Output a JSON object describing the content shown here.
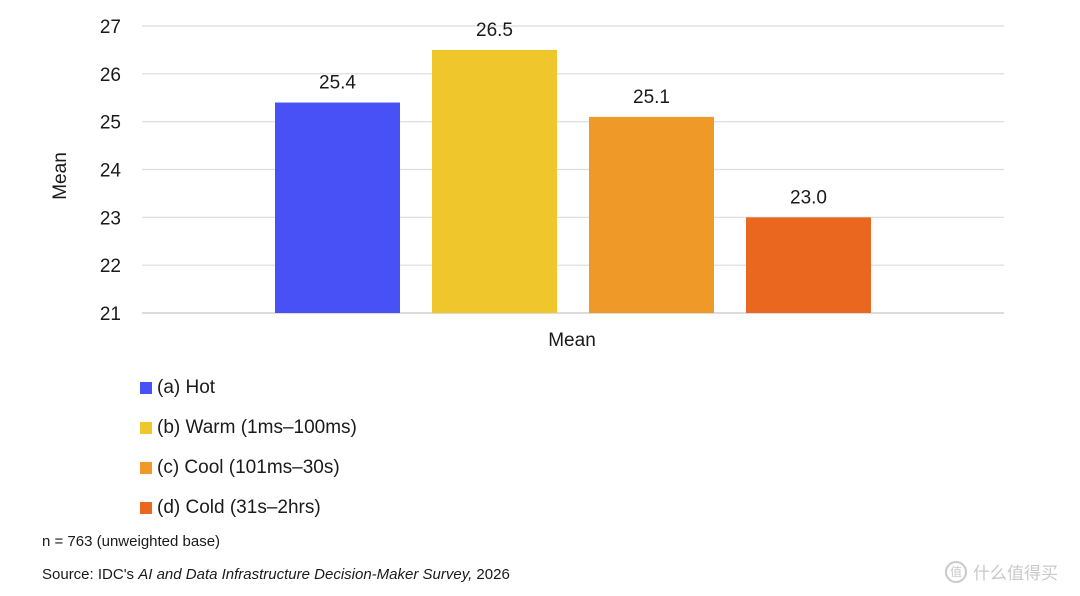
{
  "chart_data": {
    "type": "bar",
    "ylabel": "Mean",
    "xlabel": "Mean",
    "ylim": [
      21,
      27
    ],
    "yticks": [
      21,
      22,
      23,
      24,
      25,
      26,
      27
    ],
    "grid": true,
    "legend_position": "bottom-left",
    "series": [
      {
        "name": "(a) Hot",
        "value": 25.4,
        "label": "25.4",
        "color": "#4751f6"
      },
      {
        "name": "(b) Warm (1ms–100ms)",
        "value": 26.5,
        "label": "26.5",
        "color": "#f0c62d"
      },
      {
        "name": "(c) Cool (101ms–30s)",
        "value": 25.1,
        "label": "25.1",
        "color": "#ef9a28"
      },
      {
        "name": "(d) Cold (31s–2hrs)",
        "value": 23.0,
        "label": "23.0",
        "color": "#ea6720"
      }
    ]
  },
  "notes": {
    "n": "n = 763 (unweighted base)",
    "source_prefix": "Source: IDC's ",
    "source_title": "AI and Data Infrastructure Decision-Maker Survey,",
    "source_suffix": " 2026"
  },
  "watermark": {
    "icon": "值",
    "text": "什么值得买"
  }
}
